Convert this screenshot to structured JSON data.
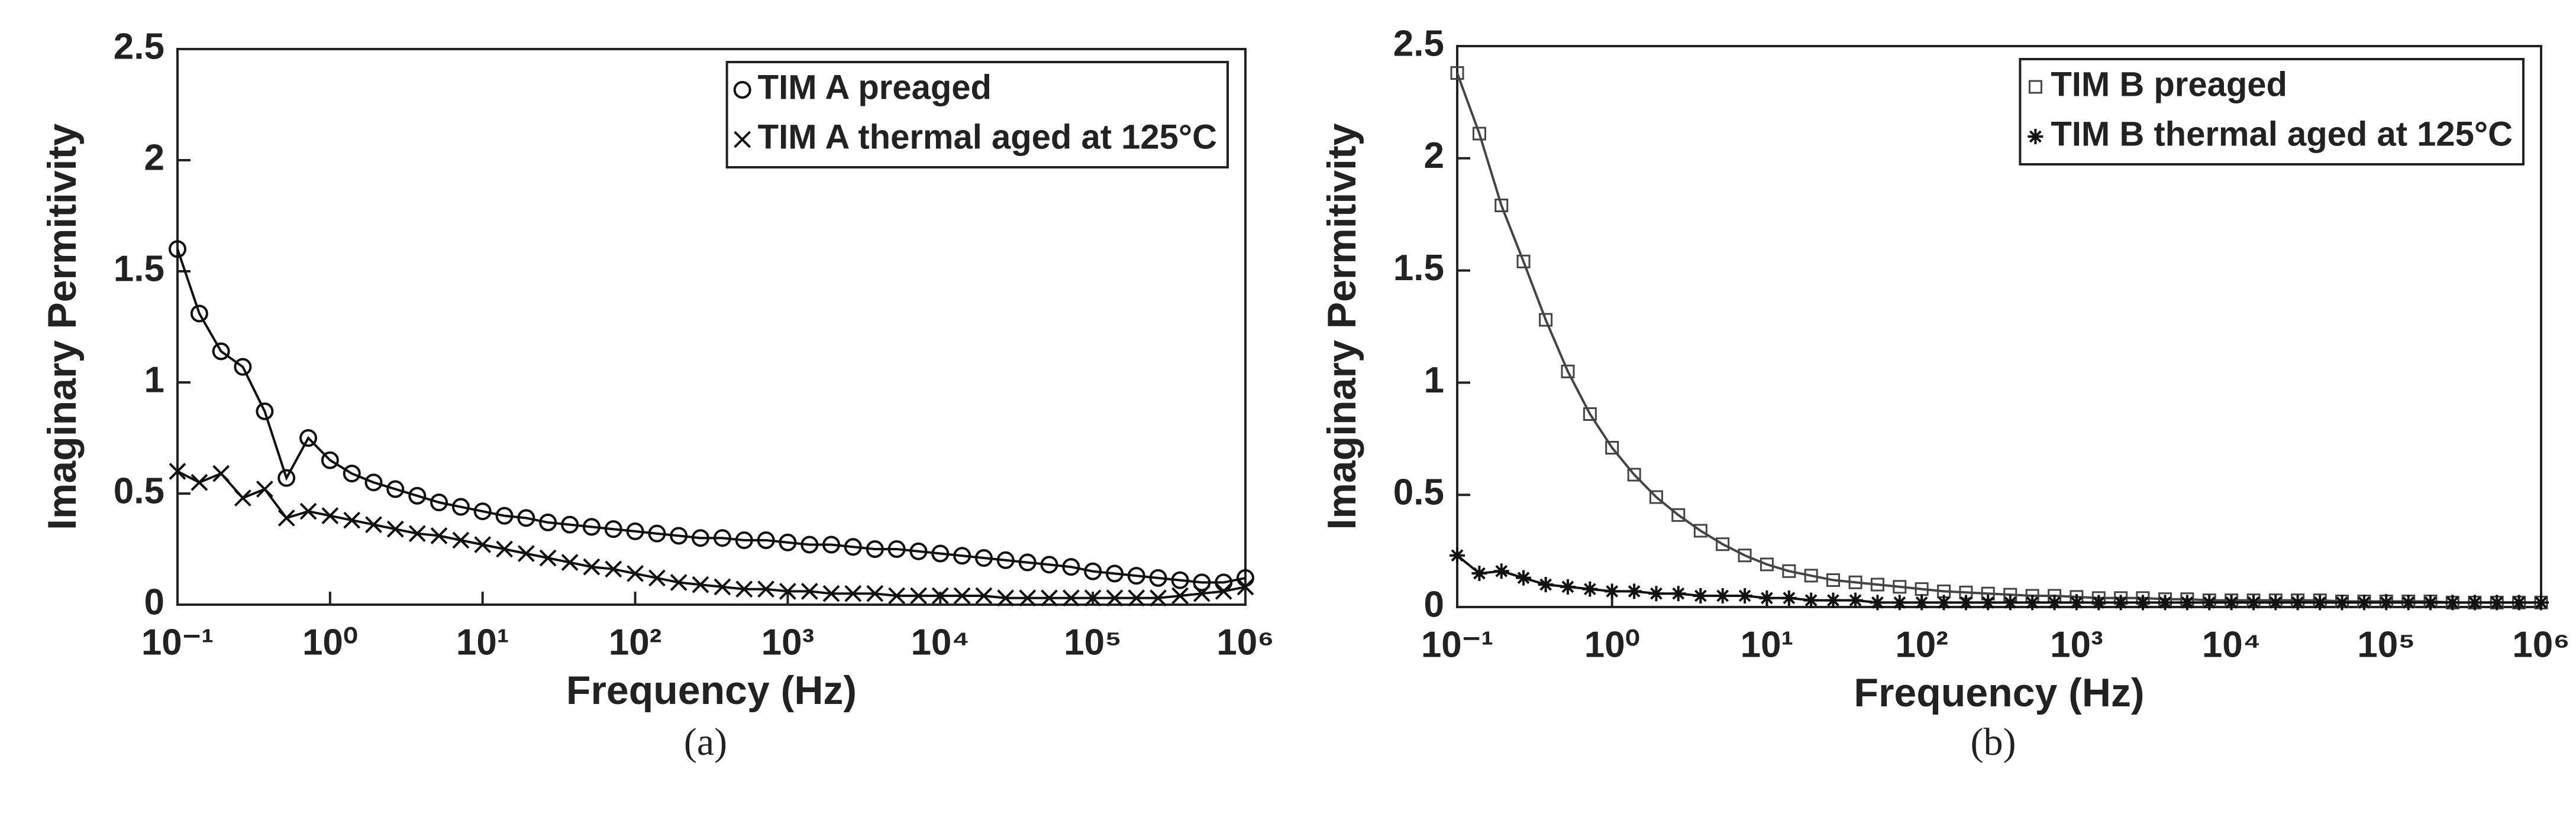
{
  "chart_data": [
    {
      "type": "line",
      "xlabel": "Frequency (Hz)",
      "ylabel": "Imaginary Permitivity",
      "caption": "(a)",
      "xscale": "log",
      "xlim": [
        0.1,
        1000000
      ],
      "ylim": [
        0,
        2.5
      ],
      "legend": "upper right",
      "xticks": [
        {
          "value": 0.1,
          "label": "10⁻¹"
        },
        {
          "value": 1,
          "label": "10⁰"
        },
        {
          "value": 10,
          "label": "10¹"
        },
        {
          "value": 100,
          "label": "10²"
        },
        {
          "value": 1000,
          "label": "10³"
        },
        {
          "value": 10000,
          "label": "10⁴"
        },
        {
          "value": 100000,
          "label": "10⁵"
        },
        {
          "value": 1000000,
          "label": "10⁶"
        }
      ],
      "yticks": [
        0,
        0.5,
        1,
        1.5,
        2,
        2.5
      ],
      "x": [
        0.1,
        0.139,
        0.193,
        0.268,
        0.373,
        0.518,
        0.72,
        1,
        1.39,
        1.93,
        2.68,
        3.73,
        5.18,
        7.2,
        10,
        13.9,
        19.3,
        26.8,
        37.3,
        51.8,
        72,
        100,
        139,
        193,
        268,
        373,
        518,
        720,
        1000,
        1390,
        1930,
        2680,
        3730,
        5180,
        7200,
        10000,
        13900,
        19300,
        26800,
        37300,
        51800,
        72000,
        100000,
        139000,
        193000,
        268000,
        373000,
        518000,
        720000,
        1000000
      ],
      "series": [
        {
          "name": "TIM A preaged",
          "color": "#111111",
          "marker": "circle",
          "values": [
            1.6,
            1.31,
            1.14,
            1.07,
            0.87,
            0.57,
            0.75,
            0.65,
            0.59,
            0.55,
            0.52,
            0.49,
            0.46,
            0.44,
            0.42,
            0.4,
            0.39,
            0.37,
            0.36,
            0.35,
            0.34,
            0.33,
            0.32,
            0.31,
            0.3,
            0.3,
            0.29,
            0.29,
            0.28,
            0.27,
            0.27,
            0.26,
            0.25,
            0.25,
            0.24,
            0.23,
            0.22,
            0.21,
            0.2,
            0.19,
            0.18,
            0.17,
            0.15,
            0.14,
            0.13,
            0.12,
            0.11,
            0.1,
            0.1,
            0.12
          ]
        },
        {
          "name": "TIM A thermal aged at 125°C",
          "color": "#111111",
          "marker": "x",
          "values": [
            0.6,
            0.55,
            0.59,
            0.48,
            0.52,
            0.39,
            0.42,
            0.4,
            0.38,
            0.36,
            0.34,
            0.32,
            0.31,
            0.29,
            0.27,
            0.25,
            0.23,
            0.21,
            0.19,
            0.17,
            0.16,
            0.14,
            0.12,
            0.1,
            0.09,
            0.08,
            0.07,
            0.07,
            0.06,
            0.06,
            0.05,
            0.05,
            0.05,
            0.04,
            0.04,
            0.04,
            0.04,
            0.04,
            0.03,
            0.03,
            0.03,
            0.03,
            0.03,
            0.03,
            0.03,
            0.03,
            0.04,
            0.05,
            0.06,
            0.08
          ]
        }
      ]
    },
    {
      "type": "line",
      "xlabel": "Frequency (Hz)",
      "ylabel": "Imaginary Permitivity",
      "caption": "(b)",
      "xscale": "log",
      "xlim": [
        0.1,
        1000000
      ],
      "ylim": [
        0,
        2.5
      ],
      "legend": "upper right",
      "xticks": [
        {
          "value": 0.1,
          "label": "10⁻¹"
        },
        {
          "value": 1,
          "label": "10⁰"
        },
        {
          "value": 10,
          "label": "10¹"
        },
        {
          "value": 100,
          "label": "10²"
        },
        {
          "value": 1000,
          "label": "10³"
        },
        {
          "value": 10000,
          "label": "10⁴"
        },
        {
          "value": 100000,
          "label": "10⁵"
        },
        {
          "value": 1000000,
          "label": "10⁶"
        }
      ],
      "yticks": [
        0,
        0.5,
        1,
        1.5,
        2,
        2.5
      ],
      "x": [
        0.1,
        0.139,
        0.193,
        0.268,
        0.373,
        0.518,
        0.72,
        1,
        1.39,
        1.93,
        2.68,
        3.73,
        5.18,
        7.2,
        10,
        13.9,
        19.3,
        26.8,
        37.3,
        51.8,
        72,
        100,
        139,
        193,
        268,
        373,
        518,
        720,
        1000,
        1390,
        1930,
        2680,
        3730,
        5180,
        7200,
        10000,
        13900,
        19300,
        26800,
        37300,
        51800,
        72000,
        100000,
        139000,
        193000,
        268000,
        373000,
        518000,
        720000,
        1000000
      ],
      "series": [
        {
          "name": "TIM B preaged",
          "color": "#444444",
          "marker": "square",
          "values": [
            2.38,
            2.11,
            1.79,
            1.54,
            1.28,
            1.05,
            0.86,
            0.71,
            0.59,
            0.49,
            0.41,
            0.34,
            0.28,
            0.23,
            0.19,
            0.16,
            0.14,
            0.12,
            0.11,
            0.1,
            0.09,
            0.08,
            0.07,
            0.065,
            0.06,
            0.055,
            0.05,
            0.05,
            0.045,
            0.04,
            0.04,
            0.04,
            0.035,
            0.035,
            0.03,
            0.03,
            0.03,
            0.03,
            0.03,
            0.03,
            0.025,
            0.025,
            0.025,
            0.025,
            0.025,
            0.02,
            0.02,
            0.02,
            0.02,
            0.02
          ]
        },
        {
          "name": "TIM B thermal aged at 125°C",
          "color": "#111111",
          "marker": "star",
          "values": [
            0.23,
            0.15,
            0.16,
            0.13,
            0.1,
            0.09,
            0.08,
            0.07,
            0.07,
            0.06,
            0.06,
            0.05,
            0.05,
            0.05,
            0.04,
            0.04,
            0.03,
            0.03,
            0.03,
            0.02,
            0.02,
            0.02,
            0.02,
            0.02,
            0.02,
            0.02,
            0.02,
            0.02,
            0.02,
            0.02,
            0.02,
            0.02,
            0.02,
            0.02,
            0.02,
            0.02,
            0.02,
            0.02,
            0.02,
            0.02,
            0.02,
            0.02,
            0.02,
            0.02,
            0.02,
            0.02,
            0.02,
            0.02,
            0.02,
            0.02
          ]
        }
      ]
    }
  ]
}
